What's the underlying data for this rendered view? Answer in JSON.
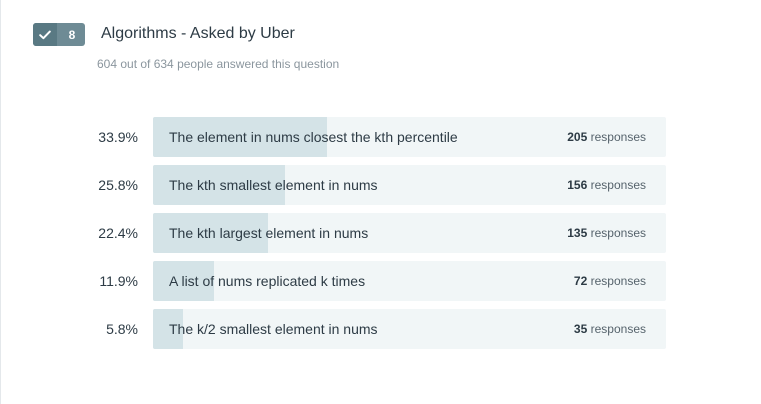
{
  "question": {
    "correct_count": "8",
    "title": "Algorithms - Asked by Uber",
    "subtitle": "604 out of 634 people answered this question"
  },
  "colors": {
    "badge_dark": "#597983",
    "badge_light": "#6e8b95",
    "bar_track": "#f1f6f7",
    "bar_fill": "#d4e3e7",
    "text": "#2d3b45"
  },
  "answers": [
    {
      "percent": "33.9%",
      "fraction": 0.339,
      "label": "The element in nums closest the kth percentile",
      "count": "205",
      "unit": "responses"
    },
    {
      "percent": "25.8%",
      "fraction": 0.258,
      "label": "The kth smallest element in nums",
      "count": "156",
      "unit": "responses"
    },
    {
      "percent": "22.4%",
      "fraction": 0.224,
      "label": "The kth largest element in nums",
      "count": "135",
      "unit": "responses"
    },
    {
      "percent": "11.9%",
      "fraction": 0.119,
      "label": "A list of nums replicated k times",
      "count": "72",
      "unit": "responses"
    },
    {
      "percent": "5.8%",
      "fraction": 0.058,
      "label": "The k/2 smallest element in nums",
      "count": "35",
      "unit": "responses"
    }
  ]
}
